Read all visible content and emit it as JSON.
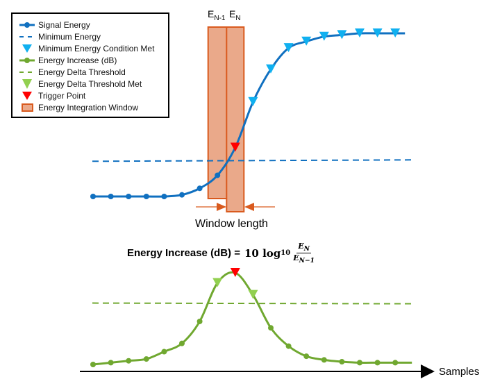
{
  "legend": {
    "items": [
      {
        "label": "Signal Energy",
        "icon": "blue-line-dot-icon"
      },
      {
        "label": "Minimum Energy",
        "icon": "blue-dashed-line-icon"
      },
      {
        "label": "Minimum Energy Condition Met",
        "icon": "cyan-triangle-icon"
      },
      {
        "label": "Energy Increase (dB)",
        "icon": "green-line-dot-icon"
      },
      {
        "label": "Energy Delta Threshold",
        "icon": "green-dashed-line-icon"
      },
      {
        "label": "Energy Delta Threshold Met",
        "icon": "light-green-triangle-icon"
      },
      {
        "label": "Trigger Point",
        "icon": "red-triangle-icon"
      },
      {
        "label": "Energy Integration Window",
        "icon": "orange-box-icon"
      }
    ]
  },
  "labels": {
    "e_prev_main": "E",
    "e_prev_sub": "N-1",
    "e_curr_main": "E",
    "e_curr_sub": "N",
    "window_length": "Window length",
    "formula_left": "Energy Increase (dB) =",
    "formula_coef": "10 log",
    "formula_base": "10",
    "formula_num": "E",
    "formula_num_sub": "N",
    "formula_den": "E",
    "formula_den_sub": "N−1",
    "x_axis": "Samples"
  },
  "colors": {
    "signal": "#1070c0",
    "min_met": "#10b0f0",
    "increase": "#70a830",
    "delta_met": "#92d050",
    "trigger": "#ff0000",
    "window_fill": "#eaa98a",
    "window_stroke": "#d95a1e"
  },
  "chart_data": {
    "type": "line",
    "samples": 18,
    "signal_energy": [
      0,
      0,
      0,
      0,
      0,
      0.01,
      0.05,
      0.13,
      0.3,
      0.58,
      0.78,
      0.91,
      0.95,
      0.98,
      0.99,
      1,
      1,
      1
    ],
    "signal_markers": [
      "dot",
      "dot",
      "dot",
      "dot",
      "dot",
      "dot",
      "dot",
      "dot",
      "trigger",
      "min",
      "min",
      "min",
      "min",
      "min",
      "min",
      "min",
      "min",
      "min"
    ],
    "minimum_energy": 0.22,
    "energy_increase": [
      0,
      0.02,
      0.04,
      0.06,
      0.14,
      0.23,
      0.47,
      0.89,
      1.0,
      0.76,
      0.4,
      0.2,
      0.09,
      0.05,
      0.03,
      0.02,
      0.02,
      0.02
    ],
    "increase_markers": [
      "dot",
      "dot",
      "dot",
      "dot",
      "dot",
      "dot",
      "dot",
      "delta",
      "trigger",
      "delta",
      "dot",
      "dot",
      "dot",
      "dot",
      "dot",
      "dot",
      "dot",
      "dot"
    ],
    "energy_delta_threshold": 0.67,
    "window_samples": {
      "prev": 7,
      "curr": 8
    }
  }
}
